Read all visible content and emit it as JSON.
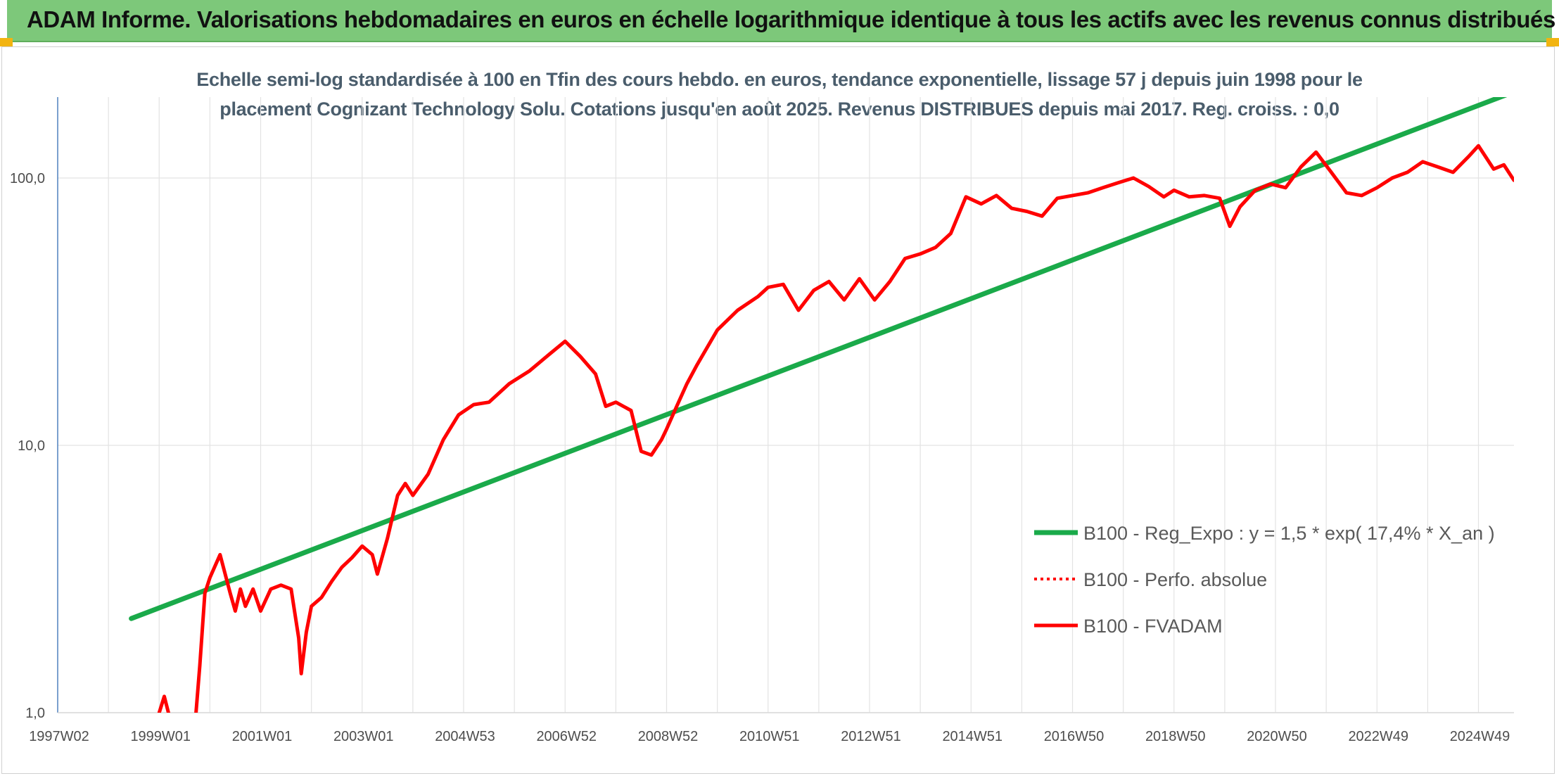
{
  "header": {
    "title": "ADAM Informe. Valorisations hebdomadaires en euros en échelle logarithmique identique à tous les actifs avec les revenus connus distribués"
  },
  "colors": {
    "banner": "#7dc87a",
    "accent_corner": "#f2b411",
    "regression": "#1aaa4a",
    "fvadam": "#ff0000",
    "perfo": "#ff0000"
  },
  "chart_data": {
    "type": "line",
    "subtitle_line1": "Echelle semi-log standardisée à 100 en Tfin des cours hebdo. en euros, tendance exponentielle, lissage 57 j depuis juin 1998 pour le",
    "subtitle_line2": "placement Cognizant Technology Solu. Cotations jusqu'en août 2025. Revenus DISTRIBUES depuis mai 2017. Reg. croiss. : 0,0",
    "y_scale": "log",
    "ylim": [
      1,
      200
    ],
    "y_ticks": [
      {
        "value": 1,
        "label": "1,0"
      },
      {
        "value": 10,
        "label": "10,0"
      },
      {
        "value": 100,
        "label": "100,0"
      }
    ],
    "xlim": [
      1997.0,
      2025.7
    ],
    "x_ticks": [
      {
        "value": 1997.0,
        "label": "1997W02"
      },
      {
        "value": 1999.0,
        "label": "1999W01"
      },
      {
        "value": 2001.0,
        "label": "2001W01"
      },
      {
        "value": 2003.0,
        "label": "2003W01"
      },
      {
        "value": 2005.0,
        "label": "2004W53"
      },
      {
        "value": 2007.0,
        "label": "2006W52"
      },
      {
        "value": 2009.0,
        "label": "2008W52"
      },
      {
        "value": 2011.0,
        "label": "2010W51"
      },
      {
        "value": 2013.0,
        "label": "2012W51"
      },
      {
        "value": 2015.0,
        "label": "2014W51"
      },
      {
        "value": 2017.0,
        "label": "2016W50"
      },
      {
        "value": 2019.0,
        "label": "2018W50"
      },
      {
        "value": 2021.0,
        "label": "2020W50"
      },
      {
        "value": 2023.0,
        "label": "2022W49"
      },
      {
        "value": 2025.0,
        "label": "2024W49"
      }
    ],
    "grid": "vertical and horizontal",
    "legend_position": "bottom-right",
    "series": [
      {
        "name": "B100 - Reg_Expo : y = 1,5 * exp( 17,4% *  X_an )",
        "style": "solid-green",
        "x": [
          1998.45,
          2025.7
        ],
        "y": [
          2.25,
          210
        ]
      },
      {
        "name": "B100 - Perfo. absolue",
        "style": "dotted-red",
        "x": [],
        "y": []
      },
      {
        "name": "B100 - FVADAM",
        "style": "solid-red",
        "x": [
          1999.0,
          1999.1,
          1999.2,
          1999.72,
          1999.8,
          1999.9,
          2000.0,
          2000.2,
          2000.4,
          2000.5,
          2000.6,
          2000.7,
          2000.85,
          2001.0,
          2001.2,
          2001.4,
          2001.6,
          2001.75,
          2001.8,
          2001.9,
          2002.0,
          2002.2,
          2002.4,
          2002.6,
          2002.8,
          2003.0,
          2003.2,
          2003.3,
          2003.5,
          2003.7,
          2003.85,
          2004.0,
          2004.3,
          2004.6,
          2004.9,
          2005.2,
          2005.5,
          2005.9,
          2006.3,
          2006.7,
          2007.0,
          2007.3,
          2007.6,
          2007.8,
          2008.0,
          2008.3,
          2008.5,
          2008.7,
          2008.9,
          2009.0,
          2009.2,
          2009.4,
          2009.6,
          2010.0,
          2010.4,
          2010.8,
          2011.0,
          2011.3,
          2011.6,
          2011.9,
          2012.2,
          2012.5,
          2012.8,
          2013.1,
          2013.4,
          2013.7,
          2014.0,
          2014.3,
          2014.6,
          2014.9,
          2015.2,
          2015.5,
          2015.8,
          2016.1,
          2016.4,
          2016.7,
          2017.0,
          2017.3,
          2017.6,
          2017.9,
          2018.2,
          2018.5,
          2018.8,
          2019.0,
          2019.3,
          2019.6,
          2019.9,
          2020.1,
          2020.3,
          2020.6,
          2020.9,
          2021.2,
          2021.5,
          2021.8,
          2022.1,
          2022.4,
          2022.7,
          2023.0,
          2023.3,
          2023.6,
          2023.9,
          2024.2,
          2024.5,
          2024.8,
          2025.0,
          2025.3,
          2025.5,
          2025.7
        ],
        "y": [
          1.0,
          1.15,
          0.97,
          0.97,
          1.5,
          2.8,
          3.2,
          3.9,
          2.8,
          2.4,
          2.9,
          2.5,
          2.9,
          2.4,
          2.9,
          3.0,
          2.9,
          1.9,
          1.4,
          2.0,
          2.5,
          2.7,
          3.1,
          3.5,
          3.8,
          4.2,
          3.9,
          3.3,
          4.5,
          6.5,
          7.2,
          6.5,
          7.8,
          10.5,
          13.0,
          14.2,
          14.5,
          17.0,
          19.0,
          22.0,
          24.5,
          21.5,
          18.5,
          14.0,
          14.5,
          13.5,
          9.5,
          9.2,
          10.5,
          11.5,
          14.0,
          17.0,
          20.0,
          27.0,
          32.0,
          36.0,
          39.0,
          40.0,
          32.0,
          38.0,
          41.0,
          35.0,
          42.0,
          35.0,
          41.0,
          50.0,
          52.0,
          55.0,
          62.0,
          85.0,
          80.0,
          86.0,
          77.0,
          75.0,
          72.0,
          84.0,
          86.0,
          88.0,
          92.0,
          96.0,
          100.0,
          93.0,
          85.0,
          90.0,
          85.0,
          86.0,
          84.0,
          66.0,
          78.0,
          90.0,
          95.0,
          92.0,
          110.0,
          125.0,
          105.0,
          88.0,
          86.0,
          92.0,
          100.0,
          105.0,
          115.0,
          110.0,
          105.0,
          120.0,
          132.0,
          108.0,
          112.0,
          98.0
        ]
      }
    ]
  }
}
